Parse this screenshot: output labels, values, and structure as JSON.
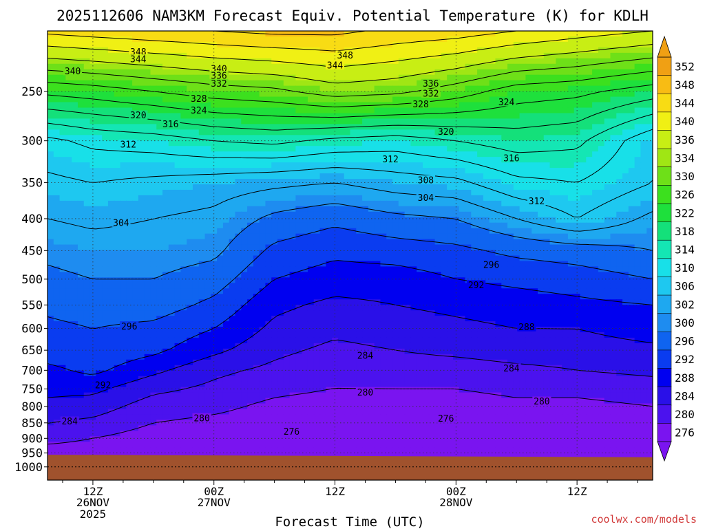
{
  "title": "2025112606 NAM3KM Forecast Equiv. Potential Temperature (K) for KDLH",
  "xlabel": "Forecast Time (UTC)",
  "credit": "coolwx.com/models",
  "chart_data": {
    "type": "heatmap",
    "variable": "Equivalent Potential Temperature",
    "units": "K",
    "y_axis": {
      "ticks": [
        250,
        300,
        350,
        400,
        450,
        500,
        550,
        600,
        650,
        700,
        750,
        800,
        850,
        900,
        950,
        1000
      ],
      "inverted": true,
      "log_scale": true,
      "range": [
        200,
        1050
      ]
    },
    "x_axis": {
      "range_hours": [
        -4.5,
        55.5
      ],
      "ticks": [
        {
          "hour": 0,
          "label": "12Z",
          "day": "26NOV",
          "year": "2025"
        },
        {
          "hour": 12,
          "label": "00Z",
          "day": "27NOV",
          "year": ""
        },
        {
          "hour": 24,
          "label": "12Z",
          "day": "",
          "year": ""
        },
        {
          "hour": 36,
          "label": "00Z",
          "day": "28NOV",
          "year": ""
        },
        {
          "hour": 48,
          "label": "12Z",
          "day": "",
          "year": ""
        }
      ]
    },
    "grid": true,
    "colorbar": {
      "position": "right",
      "levels": [
        {
          "value": 276,
          "color": "#7a14f0"
        },
        {
          "value": 280,
          "color": "#4b12ee"
        },
        {
          "value": 284,
          "color": "#2a10e8"
        },
        {
          "value": 288,
          "color": "#0000f0"
        },
        {
          "value": 292,
          "color": "#0a3cf0"
        },
        {
          "value": 296,
          "color": "#0f64f0"
        },
        {
          "value": 300,
          "color": "#1e8cf0"
        },
        {
          "value": 302,
          "color": "#1ea8f0"
        },
        {
          "value": 306,
          "color": "#1ec8f0"
        },
        {
          "value": 310,
          "color": "#18e0e8"
        },
        {
          "value": 314,
          "color": "#14e6b4"
        },
        {
          "value": 318,
          "color": "#14e07a"
        },
        {
          "value": 322,
          "color": "#1ee03c"
        },
        {
          "value": 326,
          "color": "#3ce01e"
        },
        {
          "value": 330,
          "color": "#6ee018"
        },
        {
          "value": 334,
          "color": "#a0e614"
        },
        {
          "value": 336,
          "color": "#c8ee14"
        },
        {
          "value": 340,
          "color": "#f0f014"
        },
        {
          "value": 344,
          "color": "#f8dc14"
        },
        {
          "value": 348,
          "color": "#f8bc14"
        },
        {
          "value": 352,
          "color": "#f0a014"
        }
      ]
    },
    "profiles": [
      {
        "hour": -4.5,
        "levels": [
          [
            1000,
            276
          ],
          [
            950,
            277
          ],
          [
            900,
            282
          ],
          [
            850,
            284
          ],
          [
            800,
            287
          ],
          [
            750,
            289
          ],
          [
            700,
            291
          ],
          [
            650,
            294
          ],
          [
            600,
            295
          ],
          [
            550,
            297
          ],
          [
            500,
            299
          ],
          [
            450,
            301
          ],
          [
            400,
            304
          ],
          [
            350,
            307
          ],
          [
            300,
            311
          ],
          [
            250,
            325
          ],
          [
            200,
            345
          ]
        ]
      },
      {
        "hour": 0,
        "levels": [
          [
            1000,
            276
          ],
          [
            950,
            277
          ],
          [
            900,
            280
          ],
          [
            850,
            283
          ],
          [
            800,
            286
          ],
          [
            750,
            289
          ],
          [
            700,
            293
          ],
          [
            650,
            295
          ],
          [
            600,
            296
          ],
          [
            550,
            298
          ],
          [
            500,
            300
          ],
          [
            450,
            302
          ],
          [
            400,
            305
          ],
          [
            350,
            308
          ],
          [
            300,
            313
          ],
          [
            250,
            326
          ],
          [
            200,
            346
          ]
        ]
      },
      {
        "hour": 6,
        "levels": [
          [
            1000,
            277
          ],
          [
            950,
            277
          ],
          [
            900,
            278
          ],
          [
            850,
            280
          ],
          [
            800,
            282
          ],
          [
            750,
            285
          ],
          [
            700,
            289
          ],
          [
            650,
            293
          ],
          [
            600,
            295
          ],
          [
            550,
            298
          ],
          [
            500,
            300
          ],
          [
            450,
            302
          ],
          [
            400,
            304
          ],
          [
            350,
            307
          ],
          [
            300,
            314
          ],
          [
            250,
            328
          ],
          [
            200,
            347
          ]
        ]
      },
      {
        "hour": 12,
        "levels": [
          [
            1000,
            277
          ],
          [
            950,
            277
          ],
          [
            900,
            278
          ],
          [
            850,
            279
          ],
          [
            800,
            281
          ],
          [
            750,
            283
          ],
          [
            700,
            285
          ],
          [
            650,
            289
          ],
          [
            600,
            292
          ],
          [
            550,
            295
          ],
          [
            500,
            298
          ],
          [
            450,
            301
          ],
          [
            400,
            303
          ],
          [
            350,
            306
          ],
          [
            300,
            316
          ],
          [
            250,
            330
          ],
          [
            200,
            348
          ]
        ]
      },
      {
        "hour": 18,
        "levels": [
          [
            1000,
            277
          ],
          [
            950,
            277
          ],
          [
            900,
            277
          ],
          [
            850,
            278
          ],
          [
            800,
            279
          ],
          [
            750,
            281
          ],
          [
            700,
            283
          ],
          [
            650,
            285
          ],
          [
            600,
            287
          ],
          [
            550,
            289
          ],
          [
            500,
            292
          ],
          [
            450,
            295
          ],
          [
            400,
            299
          ],
          [
            350,
            305
          ],
          [
            300,
            317
          ],
          [
            250,
            331
          ],
          [
            200,
            349
          ]
        ]
      },
      {
        "hour": 24,
        "levels": [
          [
            1000,
            277
          ],
          [
            950,
            277
          ],
          [
            900,
            276
          ],
          [
            850,
            277
          ],
          [
            800,
            278
          ],
          [
            750,
            280
          ],
          [
            700,
            281
          ],
          [
            650,
            283
          ],
          [
            600,
            285
          ],
          [
            550,
            287
          ],
          [
            500,
            290
          ],
          [
            450,
            293
          ],
          [
            400,
            297
          ],
          [
            350,
            304
          ],
          [
            300,
            315
          ],
          [
            250,
            334
          ],
          [
            200,
            349
          ]
        ]
      },
      {
        "hour": 30,
        "levels": [
          [
            1000,
            277
          ],
          [
            950,
            277
          ],
          [
            900,
            276
          ],
          [
            850,
            277
          ],
          [
            800,
            278
          ],
          [
            750,
            280
          ],
          [
            700,
            282
          ],
          [
            650,
            284
          ],
          [
            600,
            286
          ],
          [
            550,
            288
          ],
          [
            500,
            290
          ],
          [
            450,
            294
          ],
          [
            400,
            299
          ],
          [
            350,
            306
          ],
          [
            300,
            314
          ],
          [
            250,
            333
          ],
          [
            200,
            347
          ]
        ]
      },
      {
        "hour": 36,
        "levels": [
          [
            1000,
            277
          ],
          [
            950,
            277
          ],
          [
            900,
            276
          ],
          [
            850,
            276
          ],
          [
            800,
            278
          ],
          [
            750,
            280
          ],
          [
            700,
            282
          ],
          [
            650,
            285
          ],
          [
            600,
            287
          ],
          [
            550,
            289
          ],
          [
            500,
            292
          ],
          [
            450,
            295
          ],
          [
            400,
            300
          ],
          [
            350,
            307
          ],
          [
            300,
            316
          ],
          [
            250,
            330
          ],
          [
            200,
            346
          ]
        ]
      },
      {
        "hour": 42,
        "levels": [
          [
            1000,
            276
          ],
          [
            950,
            276
          ],
          [
            900,
            276
          ],
          [
            850,
            277
          ],
          [
            800,
            279
          ],
          [
            750,
            281
          ],
          [
            700,
            283
          ],
          [
            650,
            286
          ],
          [
            600,
            288
          ],
          [
            550,
            290
          ],
          [
            500,
            293
          ],
          [
            450,
            297
          ],
          [
            400,
            304
          ],
          [
            350,
            311
          ],
          [
            300,
            318
          ],
          [
            250,
            326
          ],
          [
            200,
            344
          ]
        ]
      },
      {
        "hour": 48,
        "levels": [
          [
            1000,
            276
          ],
          [
            950,
            276
          ],
          [
            900,
            276
          ],
          [
            850,
            277
          ],
          [
            800,
            279
          ],
          [
            750,
            281
          ],
          [
            700,
            284
          ],
          [
            650,
            286
          ],
          [
            600,
            288
          ],
          [
            550,
            291
          ],
          [
            500,
            294
          ],
          [
            450,
            298
          ],
          [
            400,
            308
          ],
          [
            350,
            312
          ],
          [
            300,
            317
          ],
          [
            250,
            325
          ],
          [
            200,
            342
          ]
        ]
      },
      {
        "hour": 55.5,
        "levels": [
          [
            1000,
            276
          ],
          [
            950,
            276
          ],
          [
            900,
            277
          ],
          [
            850,
            278
          ],
          [
            800,
            280
          ],
          [
            750,
            282
          ],
          [
            700,
            285
          ],
          [
            650,
            287
          ],
          [
            600,
            290
          ],
          [
            550,
            292
          ],
          [
            500,
            296
          ],
          [
            450,
            300
          ],
          [
            400,
            303
          ],
          [
            350,
            308
          ],
          [
            300,
            309
          ],
          [
            250,
            322
          ],
          [
            200,
            340
          ]
        ]
      }
    ],
    "surface_pressure": [
      {
        "hour": -4.5,
        "value": 956
      },
      {
        "hour": 55.5,
        "value": 965
      }
    ],
    "contour_labels": [
      {
        "hour": 4.5,
        "p": 216,
        "text": "348"
      },
      {
        "hour": 4.5,
        "p": 222,
        "text": "344"
      },
      {
        "hour": -2,
        "p": 232,
        "text": "340"
      },
      {
        "hour": 12.5,
        "p": 230,
        "text": "340"
      },
      {
        "hour": 12.5,
        "p": 236,
        "text": "336"
      },
      {
        "hour": 12.5,
        "p": 243,
        "text": "332"
      },
      {
        "hour": 25,
        "p": 219,
        "text": "348"
      },
      {
        "hour": 24,
        "p": 227,
        "text": "344"
      },
      {
        "hour": 10.5,
        "p": 257,
        "text": "328"
      },
      {
        "hour": 10.5,
        "p": 268,
        "text": "324"
      },
      {
        "hour": 33.5,
        "p": 243,
        "text": "336"
      },
      {
        "hour": 33.5,
        "p": 252,
        "text": "332"
      },
      {
        "hour": 32.5,
        "p": 262,
        "text": "328"
      },
      {
        "hour": 41,
        "p": 260,
        "text": "324"
      },
      {
        "hour": 4.5,
        "p": 273,
        "text": "320"
      },
      {
        "hour": 7.7,
        "p": 282,
        "text": "316"
      },
      {
        "hour": 3.5,
        "p": 304,
        "text": "312"
      },
      {
        "hour": 35,
        "p": 290,
        "text": "320"
      },
      {
        "hour": 41.5,
        "p": 320,
        "text": "316"
      },
      {
        "hour": 29.5,
        "p": 321,
        "text": "312"
      },
      {
        "hour": 33,
        "p": 347,
        "text": "308"
      },
      {
        "hour": 33,
        "p": 370,
        "text": "304"
      },
      {
        "hour": 44,
        "p": 375,
        "text": "312"
      },
      {
        "hour": 2.8,
        "p": 406,
        "text": "304"
      },
      {
        "hour": 39.5,
        "p": 474,
        "text": "296"
      },
      {
        "hour": 38,
        "p": 511,
        "text": "292"
      },
      {
        "hour": 3.6,
        "p": 595,
        "text": "296"
      },
      {
        "hour": 43,
        "p": 597,
        "text": "288"
      },
      {
        "hour": 27,
        "p": 663,
        "text": "284"
      },
      {
        "hour": 41.5,
        "p": 695,
        "text": "284"
      },
      {
        "hour": 1,
        "p": 740,
        "text": "292"
      },
      {
        "hour": 27,
        "p": 760,
        "text": "280"
      },
      {
        "hour": 44.5,
        "p": 785,
        "text": "280"
      },
      {
        "hour": 10.8,
        "p": 835,
        "text": "280"
      },
      {
        "hour": 35,
        "p": 837,
        "text": "276"
      },
      {
        "hour": 19.7,
        "p": 878,
        "text": "276"
      },
      {
        "hour": -2.3,
        "p": 845,
        "text": "284"
      }
    ]
  }
}
